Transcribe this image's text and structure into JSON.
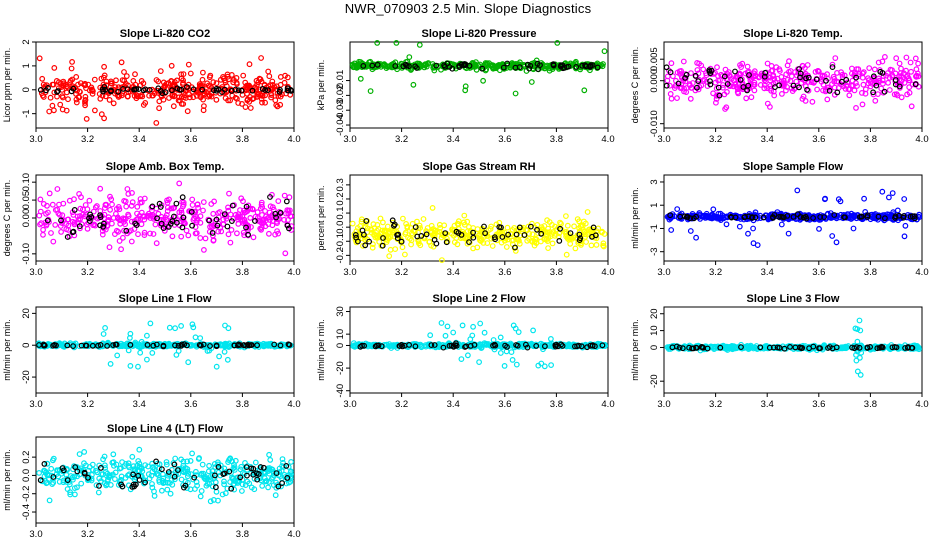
{
  "figure": {
    "title": "NWR_070903  2.5 Min. Slope Diagnostics"
  },
  "chart_data": [
    {
      "type": "scatter",
      "title": "Slope Li-820 CO2",
      "ylabel": "Licor ppm per min.",
      "xlim": [
        3.0,
        4.0
      ],
      "ylim": [
        -1.6,
        2.0
      ],
      "xticks": [
        "3.0",
        "3.2",
        "3.4",
        "3.6",
        "3.8",
        "4.0"
      ],
      "yticks": [
        "-1",
        "0",
        "1",
        "2"
      ],
      "series": [
        {
          "name": "points",
          "color": "#ff0000",
          "spread": 0.6,
          "outlier_rate": 0.08,
          "outlier_spread": 1.4
        },
        {
          "name": "marked",
          "color": "#000000",
          "spread": 0.1
        }
      ]
    },
    {
      "type": "scatter",
      "title": "Slope Li-820 Pressure",
      "ylabel": "kPa per min.",
      "xlim": [
        3.0,
        4.0
      ],
      "ylim": [
        -0.042,
        0.016
      ],
      "xticks": [
        "3.0",
        "3.2",
        "3.4",
        "3.6",
        "3.8",
        "4.0"
      ],
      "yticks": [
        "-0.04",
        "-0.03",
        "-0.02",
        "-0.01"
      ],
      "series": [
        {
          "name": "points",
          "color": "#00b000",
          "spread": 0.002,
          "outlier_rate": 0.03,
          "outlier_spread": 0.02
        },
        {
          "name": "marked",
          "color": "#000000",
          "spread": 0.002
        }
      ]
    },
    {
      "type": "scatter",
      "title": "Slope Li-820 Temp.",
      "ylabel": "degrees C per min.",
      "xlim": [
        3.0,
        4.0
      ],
      "ylim": [
        -0.011,
        0.009
      ],
      "xticks": [
        "3.0",
        "3.2",
        "3.4",
        "3.6",
        "3.8",
        "4.0"
      ],
      "yticks": [
        "-0.010",
        "0.000",
        "0.005"
      ],
      "series": [
        {
          "name": "points",
          "color": "#ff00ff",
          "spread": 0.0035,
          "outlier_rate": 0.05,
          "outlier_spread": 0.007
        },
        {
          "name": "marked",
          "color": "#000000",
          "spread": 0.003
        }
      ]
    },
    {
      "type": "scatter",
      "title": "Slope Amb. Box Temp.",
      "ylabel": "degrees C per min.",
      "xlim": [
        3.0,
        4.0
      ],
      "ylim": [
        -0.12,
        0.12
      ],
      "xticks": [
        "3.0",
        "3.2",
        "3.4",
        "3.6",
        "3.8",
        "4.0"
      ],
      "yticks": [
        "-0.10",
        "0.00",
        "0.05",
        "0.10"
      ],
      "series": [
        {
          "name": "points",
          "color": "#ff00ff",
          "spread": 0.055,
          "outlier_rate": 0.05,
          "outlier_spread": 0.1
        },
        {
          "name": "marked",
          "color": "#000000",
          "spread": 0.045
        }
      ]
    },
    {
      "type": "scatter",
      "title": "Slope Gas Stream RH",
      "ylabel": "percent per min.",
      "xlim": [
        3.0,
        4.0
      ],
      "ylim": [
        -0.24,
        0.37
      ],
      "xticks": [
        "3.0",
        "3.2",
        "3.4",
        "3.6",
        "3.8",
        "4.0"
      ],
      "yticks": [
        "-0.2",
        "-0.1",
        "0.0",
        "0.1",
        "0.2",
        "0.3"
      ],
      "series": [
        {
          "name": "points",
          "color": "#ffff00",
          "center": -0.05,
          "spread": 0.08,
          "outlier_rate": 0.05,
          "outlier_spread": 0.22
        },
        {
          "name": "marked",
          "color": "#000000",
          "center": -0.05,
          "spread": 0.07
        }
      ]
    },
    {
      "type": "scatter",
      "title": "Slope Sample Flow",
      "ylabel": "ml/min per min.",
      "xlim": [
        3.0,
        4.0
      ],
      "ylim": [
        -3.8,
        3.6
      ],
      "xticks": [
        "3.0",
        "3.2",
        "3.4",
        "3.6",
        "3.8",
        "4.0"
      ],
      "yticks": [
        "-3",
        "-1",
        "1",
        "3"
      ],
      "series": [
        {
          "name": "points",
          "color": "#0000ff",
          "spread": 0.25,
          "outlier_rate": 0.07,
          "outlier_spread": 2.5
        },
        {
          "name": "marked",
          "color": "#000000",
          "spread": 0.15
        }
      ]
    },
    {
      "type": "scatter",
      "title": "Slope Line 1 Flow",
      "ylabel": "ml/min per min.",
      "xlim": [
        3.0,
        4.0
      ],
      "ylim": [
        -30,
        24
      ],
      "xticks": [
        "3.0",
        "3.2",
        "3.4",
        "3.6",
        "3.8",
        "4.0"
      ],
      "yticks": [
        "-20",
        "0",
        "20"
      ],
      "series": [
        {
          "name": "points",
          "color": "#00e5ee",
          "spread": 1.0,
          "outlier_rate": 0.1,
          "outlier_spread": 14,
          "outlier_xrange": [
            3.25,
            3.75
          ]
        },
        {
          "name": "marked",
          "color": "#000000",
          "spread": 0.6
        }
      ]
    },
    {
      "type": "scatter",
      "title": "Slope Line 2 Flow",
      "ylabel": "ml/min per min.",
      "xlim": [
        3.0,
        4.0
      ],
      "ylim": [
        -42,
        34
      ],
      "xticks": [
        "3.0",
        "3.2",
        "3.4",
        "3.6",
        "3.8",
        "4.0"
      ],
      "yticks": [
        "-40",
        "-20",
        "0",
        "10",
        "30"
      ],
      "series": [
        {
          "name": "points",
          "color": "#00e5ee",
          "spread": 1.5,
          "outlier_rate": 0.12,
          "outlier_spread": 20,
          "outlier_xrange": [
            3.3,
            3.78
          ]
        },
        {
          "name": "marked",
          "color": "#000000",
          "spread": 1.5
        }
      ]
    },
    {
      "type": "scatter",
      "title": "Slope Line 3 Flow",
      "ylabel": "ml/min per min.",
      "xlim": [
        3.0,
        4.0
      ],
      "ylim": [
        -27,
        24
      ],
      "xticks": [
        "3.0",
        "3.2",
        "3.4",
        "3.6",
        "3.8",
        "4.0"
      ],
      "yticks": [
        "-20",
        "0",
        "10",
        "20"
      ],
      "series": [
        {
          "name": "points",
          "color": "#00e5ee",
          "spread": 1.0,
          "outlier_rate": 0.02,
          "outlier_spread": 18,
          "outlier_xrange": [
            3.74,
            3.77
          ]
        },
        {
          "name": "marked",
          "color": "#000000",
          "spread": 0.6
        }
      ]
    },
    {
      "type": "scatter",
      "title": "Slope Line 4 (LT) Flow",
      "ylabel": "ml/min per min.",
      "xlim": [
        3.0,
        4.0
      ],
      "ylim": [
        -0.52,
        0.42
      ],
      "xticks": [
        "3.0",
        "3.2",
        "3.4",
        "3.6",
        "3.8",
        "4.0"
      ],
      "yticks": [
        "-0.4",
        "-0.2",
        "0.0",
        "0.2"
      ],
      "series": [
        {
          "name": "points",
          "color": "#00e5ee",
          "spread": 0.17,
          "outlier_rate": 0.05,
          "outlier_spread": 0.3
        },
        {
          "name": "marked",
          "color": "#000000",
          "spread": 0.16
        }
      ]
    }
  ]
}
